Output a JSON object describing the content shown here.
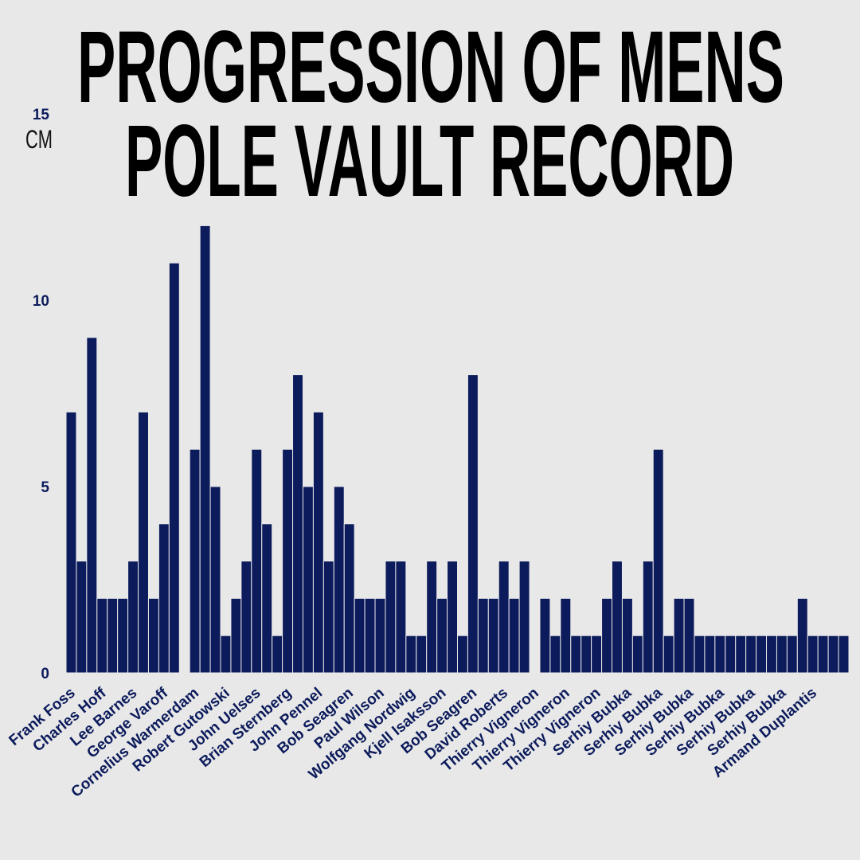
{
  "chart_data": {
    "type": "bar",
    "title": [
      "PROGRESSION OF MENS",
      "POLE VAULT RECORD"
    ],
    "y_label": "CM",
    "categories": [
      "Frank Foss",
      null,
      null,
      "Charles Hoff",
      null,
      null,
      "Lee Barnes",
      null,
      null,
      "George Varoff",
      null,
      null,
      "Cornelius Warmerdam",
      null,
      null,
      "Robert Gutowski",
      null,
      null,
      "John Uelses",
      null,
      null,
      "Brian Sternberg",
      null,
      null,
      "John Pennel",
      null,
      null,
      "Bob Seagren",
      null,
      null,
      "Paul Wilson",
      null,
      null,
      "Wolfgang Nordwig",
      null,
      null,
      "Kjell Isaksson",
      null,
      null,
      "Bob Seagren",
      null,
      null,
      "David Roberts",
      null,
      null,
      "Thierry Vigneron",
      null,
      null,
      "Thierry Vigneron",
      null,
      null,
      "Thierry Vigneron",
      null,
      null,
      "Serhiy Bubka",
      null,
      null,
      "Serhiy Bubka",
      null,
      null,
      "Serhiy Bubka",
      null,
      null,
      "Serhiy Bubka",
      null,
      null,
      "Serhiy Bubka",
      null,
      null,
      "Serhiy Bubka",
      null,
      null,
      "Armand Duplantis",
      null,
      null,
      null
    ],
    "values": [
      7,
      3,
      9,
      2,
      2,
      2,
      3,
      7,
      2,
      4,
      11,
      0,
      6,
      12,
      5,
      1,
      2,
      3,
      6,
      4,
      1,
      6,
      8,
      5,
      7,
      3,
      5,
      4,
      2,
      2,
      2,
      3,
      3,
      1,
      1,
      3,
      2,
      3,
      1,
      8,
      2,
      2,
      3,
      2,
      3,
      0,
      2,
      1,
      2,
      1,
      1,
      1,
      2,
      3,
      2,
      1,
      3,
      6,
      1,
      2,
      2,
      1,
      1,
      1,
      1,
      1,
      1,
      1,
      1,
      1,
      1,
      2,
      1,
      1,
      1,
      1
    ],
    "color": "#0c1b5b",
    "ylim": [
      0,
      15
    ],
    "yticks": [
      0,
      5,
      10,
      15
    ],
    "grid": false
  }
}
